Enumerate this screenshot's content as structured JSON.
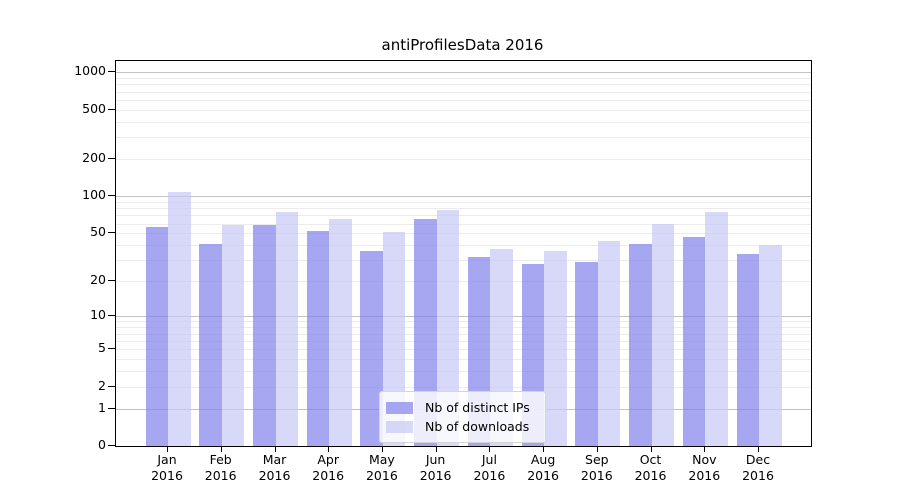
{
  "chart_data": {
    "type": "bar",
    "title": "antiProfilesData 2016",
    "categories": [
      "Jan\n2016",
      "Feb\n2016",
      "Mar\n2016",
      "Apr\n2016",
      "May\n2016",
      "Jun\n2016",
      "Jul\n2016",
      "Aug\n2016",
      "Sep\n2016",
      "Oct\n2016",
      "Nov\n2016",
      "Dec\n2016"
    ],
    "series": [
      {
        "name": "Nb of distinct IPs",
        "color": "rgba(130,130,235,0.7)",
        "values": [
          56,
          41,
          59,
          52,
          36,
          66,
          32,
          28,
          29,
          41,
          47,
          34
        ]
      },
      {
        "name": "Nb of downloads",
        "color": "rgba(200,200,245,0.7)",
        "values": [
          108,
          58,
          74,
          66,
          51,
          77,
          37,
          36,
          43,
          60,
          74,
          40
        ]
      }
    ],
    "y_axis": {
      "scale": "symlog",
      "tick_labels": [
        "0",
        "1",
        "2",
        "5",
        "10",
        "20",
        "50",
        "100",
        "200",
        "500",
        "1000"
      ],
      "tick_values": [
        0,
        1,
        2,
        5,
        10,
        20,
        50,
        100,
        200,
        500,
        1000
      ],
      "range_max": 1100
    },
    "xlabel": "",
    "ylabel": "",
    "grid": "horizontal log minor+major",
    "legend_position": "bottom-center"
  }
}
